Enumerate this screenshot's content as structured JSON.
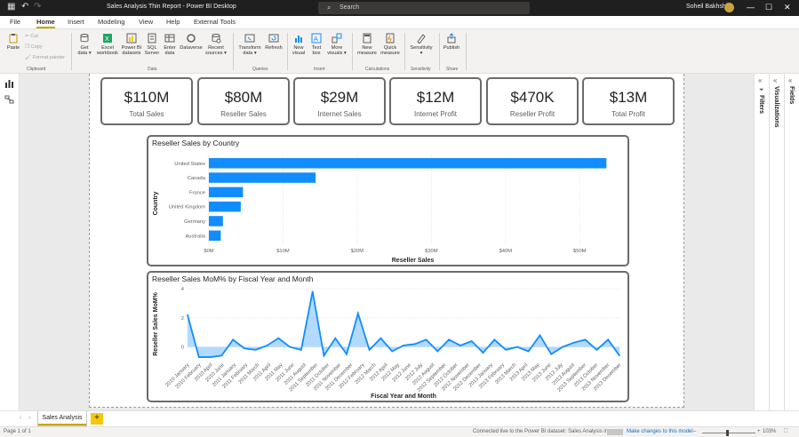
{
  "titlebar": {
    "title": "Sales Analysis Thin Report - Power BI Desktop",
    "search_placeholder": "Search",
    "user_name": "Soheil Bakhshi"
  },
  "ribbon_tabs": [
    "File",
    "Home",
    "Insert",
    "Modeling",
    "View",
    "Help",
    "External Tools"
  ],
  "ribbon": {
    "clipboard": {
      "paste": "Paste",
      "cut": "Cut",
      "copy": "Copy",
      "format_painter": "Format painter",
      "group": "Clipboard"
    },
    "data": {
      "get_data": [
        "Get",
        "data ▾"
      ],
      "excel": [
        "Excel",
        "workbook"
      ],
      "pbi_datasets": [
        "Power BI",
        "datasets"
      ],
      "sql": [
        "SQL",
        "Server"
      ],
      "enter_data": [
        "Enter",
        "data"
      ],
      "dataverse": [
        "Dataverse",
        ""
      ],
      "recent": [
        "Recent",
        "sources ▾"
      ],
      "group": "Data"
    },
    "queries": {
      "transform": [
        "Transform",
        "data ▾"
      ],
      "refresh": [
        "Refresh",
        ""
      ],
      "group": "Queries"
    },
    "insert": {
      "new_visual": [
        "New",
        "visual"
      ],
      "text_box": [
        "Text",
        "box"
      ],
      "more_visuals": [
        "More",
        "visuals ▾"
      ],
      "group": "Insert"
    },
    "calculations": {
      "new_measure": [
        "New",
        "measure"
      ],
      "quick_measure": [
        "Quick",
        "measure"
      ],
      "group": "Calculations"
    },
    "sensitivity": {
      "label": [
        "Sensitivity",
        "▾"
      ],
      "group": "Sensitivity"
    },
    "share": {
      "publish": [
        "Publish",
        ""
      ],
      "group": "Share"
    }
  },
  "cards": [
    {
      "value": "$110M",
      "label": "Total Sales"
    },
    {
      "value": "$80M",
      "label": "Reseller Sales"
    },
    {
      "value": "$29M",
      "label": "Internet Sales"
    },
    {
      "value": "$12M",
      "label": "Internet Profit"
    },
    {
      "value": "$470K",
      "label": "Reseller Profit"
    },
    {
      "value": "$13M",
      "label": "Total Profit"
    }
  ],
  "bar_visual": {
    "title": "Reseller Sales by Country"
  },
  "line_visual": {
    "title": "Reseller Sales MoM% by Fiscal Year and Month"
  },
  "chart_data": [
    {
      "type": "bar",
      "orientation": "horizontal",
      "title": "Reseller Sales by Country",
      "categories": [
        "United States",
        "Canada",
        "France",
        "United Kingdom",
        "Germany",
        "Australia"
      ],
      "values": [
        53.6,
        14.4,
        4.6,
        4.3,
        1.9,
        1.6
      ],
      "value_unit": "M",
      "xlabel": "Reseller Sales",
      "ylabel": "Country",
      "xlim": [
        0,
        55
      ],
      "xticks": [
        "$0M",
        "$10M",
        "$20M",
        "$30M",
        "$40M",
        "$50M"
      ],
      "color": "#118DFF",
      "grid": true
    },
    {
      "type": "area",
      "title": "Reseller Sales MoM% by Fiscal Year and Month",
      "categories": [
        "2010 January",
        "2010 February",
        "2010 April",
        "2010 June",
        "2011 January",
        "2011 February",
        "2011 March",
        "2011 April",
        "2011 May",
        "2011 June",
        "2011 August",
        "2011 September",
        "2011 October",
        "2011 November",
        "2011 December",
        "2012 January",
        "2012 February",
        "2012 March",
        "2012 April",
        "2012 May",
        "2012 June",
        "2012 July",
        "2012 August",
        "2012 September",
        "2012 October",
        "2012 November",
        "2012 December",
        "2013 January",
        "2013 February",
        "2013 March",
        "2013 April",
        "2013 May",
        "2013 June",
        "2013 July",
        "2013 August",
        "2013 September",
        "2013 October",
        "2013 November",
        "2013 December"
      ],
      "xtick_labels": [
        "2010 January",
        "2010 February",
        "2010 April",
        "2010 June",
        "2011 January",
        "2011 February",
        "2011 March",
        "2011 April",
        "2011 May",
        "2011 June",
        "2011 August",
        "2011 September",
        "2011 October",
        "2011 November",
        "2011 December",
        "2012 February",
        "2012 March",
        "2012 April",
        "2012 May",
        "2012 June",
        "2012 July",
        "2012 August",
        "2012 September",
        "2012 October",
        "2012 November",
        "2012 December",
        "2013 January",
        "2013 February",
        "2013 March",
        "2013 April",
        "2013 May",
        "2013 June",
        "2013 July",
        "2013 August",
        "2013 September",
        "2013 October",
        "2013 November",
        "2013 December"
      ],
      "values": [
        2.2,
        -0.7,
        -0.7,
        -0.6,
        0.5,
        -0.1,
        -0.2,
        0.1,
        0.6,
        0.0,
        -0.2,
        3.8,
        -0.6,
        0.6,
        -0.5,
        2.3,
        -0.2,
        0.6,
        -0.3,
        0.1,
        0.2,
        0.5,
        -0.3,
        0.5,
        0.1,
        0.4,
        -0.4,
        0.5,
        -0.2,
        0.0,
        -0.3,
        0.8,
        -0.5,
        0.0,
        0.3,
        0.5,
        -0.2,
        0.5,
        -0.6
      ],
      "xlabel": "Fiscal Year and Month",
      "ylabel": "Reseller Sales MoM%",
      "ylim": [
        -1,
        4
      ],
      "yticks": [
        0,
        2,
        4
      ],
      "color": "#118DFF"
    }
  ],
  "panes": {
    "filters": "Filters",
    "visualizations": "Visualizations",
    "fields": "Fields"
  },
  "page_tabs": {
    "active": "Sales Analysis",
    "add": "+"
  },
  "statusbar": {
    "page": "Page 1 of 1",
    "connection": "Connected live to the Power BI dataset: Sales Analysis in",
    "make_changes": "Make changes to this model",
    "zoom": "103%"
  }
}
